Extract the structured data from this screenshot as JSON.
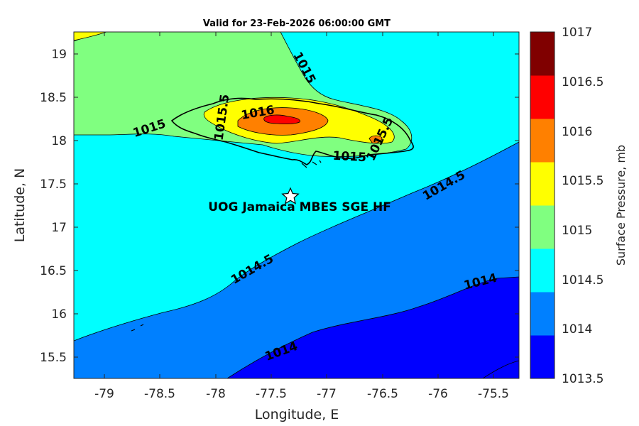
{
  "title": "Valid for 23-Feb-2026 06:00:00 GMT",
  "x_axis": {
    "label": "Longitude, E",
    "ticks": [
      "-79",
      "-78.5",
      "-78",
      "-77.5",
      "-77",
      "-76.5",
      "-76",
      "-75.5"
    ],
    "range": [
      -79.25,
      -75.25
    ]
  },
  "y_axis": {
    "label": "Latitude, N",
    "ticks": [
      "15.5",
      "16",
      "16.5",
      "17",
      "17.5",
      "18",
      "18.5",
      "19"
    ],
    "range": [
      15.25,
      19.25
    ]
  },
  "colorbar": {
    "label": "Surface Pressure, mb",
    "ticks": [
      "1013.5",
      "1014",
      "1014.5",
      "1015",
      "1015.5",
      "1016",
      "1016.5",
      "1017"
    ],
    "levels": [
      1013.5,
      1014,
      1014.5,
      1015,
      1015.5,
      1016,
      1016.5,
      1017
    ],
    "colors": [
      "#0000ff",
      "#0080ff",
      "#00ffff",
      "#80ff80",
      "#ffff00",
      "#ff8000",
      "#ff0000",
      "#800000"
    ]
  },
  "contour_labels": {
    "l1015_nw": "1015",
    "l1015_w": "1015",
    "l1015_5_w": "1015.5",
    "l1016": "1016",
    "l1015_5_e": "1015.5",
    "l1015_s": "1015",
    "l1014_5_ne": "1014.5",
    "l1014_5_sw": "1014.5",
    "l1014_se": "1014",
    "l1014_s": "1014"
  },
  "station": {
    "name": "UOG Jamaica MBES SGE HF",
    "lon": -77.3,
    "lat": 17.37,
    "marker": "star-icon"
  },
  "map": {
    "type": "filled-contour",
    "variable": "Surface Pressure",
    "units": "mb",
    "region": "Jamaica"
  }
}
